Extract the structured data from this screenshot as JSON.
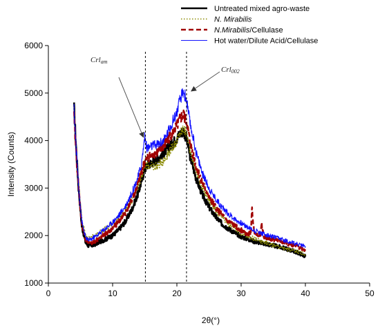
{
  "chart_data": {
    "type": "line",
    "title": "",
    "xlabel": "2θ(°)",
    "ylabel": "Intensity (Counts)",
    "xlim": [
      0,
      50
    ],
    "ylim": [
      1000,
      6000
    ],
    "x_ticks": [
      0,
      10,
      20,
      30,
      40,
      50
    ],
    "y_ticks": [
      1000,
      2000,
      3000,
      4000,
      5000,
      6000
    ],
    "grid": false,
    "legend_position": "top-right",
    "series": [
      {
        "name": "Untreated mixed agro-waste",
        "color": "#000000",
        "style": "solid-thick",
        "x": [
          4,
          4.3,
          4.7,
          5.2,
          5.8,
          6.3,
          7,
          8,
          9,
          10,
          11,
          12,
          13,
          14,
          14.5,
          15,
          15.5,
          16,
          17,
          18,
          19,
          20,
          20.5,
          21,
          21.5,
          22,
          23,
          24,
          25,
          26,
          27,
          28,
          29,
          30,
          31,
          32,
          33,
          34,
          35,
          36,
          37,
          38,
          39,
          40
        ],
        "y": [
          4700,
          3900,
          3000,
          2200,
          1850,
          1780,
          1800,
          1870,
          1930,
          2000,
          2130,
          2300,
          2550,
          2900,
          3150,
          3400,
          3500,
          3530,
          3620,
          3750,
          3900,
          4050,
          4150,
          4200,
          4050,
          3700,
          3200,
          2850,
          2600,
          2400,
          2250,
          2150,
          2060,
          1980,
          1930,
          1880,
          1850,
          1820,
          1790,
          1760,
          1720,
          1680,
          1630,
          1560
        ]
      },
      {
        "name": "N. Mirabilis",
        "color": "#8a8a00",
        "style": "dotted",
        "x": [
          4,
          4.3,
          4.7,
          5.2,
          5.8,
          6.3,
          7,
          8,
          9,
          10,
          11,
          12,
          13,
          14,
          14.5,
          15,
          15.5,
          16,
          17,
          18,
          19,
          20,
          20.5,
          21,
          21.5,
          22,
          23,
          24,
          25,
          26,
          27,
          28,
          29,
          30,
          31,
          32,
          33,
          34,
          35,
          36,
          37,
          38,
          39,
          40
        ],
        "y": [
          4600,
          3900,
          3100,
          2350,
          2000,
          1950,
          1980,
          2060,
          2150,
          2250,
          2370,
          2520,
          2750,
          3050,
          3250,
          3450,
          3480,
          3450,
          3470,
          3600,
          3800,
          4000,
          4150,
          4250,
          4150,
          3850,
          3350,
          3000,
          2750,
          2550,
          2380,
          2250,
          2150,
          2060,
          1990,
          1930,
          1880,
          1840,
          1800,
          1760,
          1720,
          1690,
          1650,
          1600
        ]
      },
      {
        "name": "N.Mirabilis/Cellulase",
        "color": "#a00000",
        "style": "dashed",
        "x": [
          4,
          4.3,
          4.7,
          5.2,
          5.8,
          6.3,
          7,
          8,
          9,
          10,
          11,
          12,
          13,
          14,
          14.5,
          15,
          15.5,
          16,
          17,
          18,
          19,
          20,
          20.5,
          21,
          21.5,
          22,
          23,
          24,
          25,
          26,
          27,
          28,
          29,
          30,
          31,
          31.5,
          31.7,
          32,
          33,
          33.2,
          33.5,
          34,
          35,
          36,
          37,
          38,
          39,
          40
        ],
        "y": [
          4500,
          3800,
          3000,
          2250,
          1900,
          1820,
          1860,
          1950,
          2050,
          2150,
          2300,
          2480,
          2750,
          3100,
          3350,
          3550,
          3650,
          3680,
          3760,
          3900,
          4100,
          4300,
          4450,
          4550,
          4400,
          4000,
          3450,
          3100,
          2820,
          2600,
          2430,
          2300,
          2200,
          2110,
          2040,
          2050,
          2550,
          2100,
          1990,
          2250,
          1990,
          1960,
          1920,
          1880,
          1840,
          1800,
          1760,
          1700
        ]
      },
      {
        "name": "Hot water/Dilute Acid/Cellulase",
        "color": "#1010ff",
        "style": "solid-thin",
        "x": [
          4,
          4.3,
          4.7,
          5.2,
          5.8,
          6.3,
          7,
          8,
          9,
          10,
          11,
          12,
          13,
          14,
          14.5,
          14.8,
          15,
          15.3,
          15.6,
          16,
          17,
          18,
          19,
          20,
          20.5,
          21,
          21.5,
          22,
          23,
          24,
          25,
          26,
          27,
          28,
          29,
          30,
          31,
          32,
          33,
          34,
          35,
          36,
          37,
          38,
          39,
          40
        ],
        "y": [
          4650,
          3900,
          3050,
          2300,
          1950,
          1900,
          1950,
          2050,
          2160,
          2280,
          2430,
          2620,
          2900,
          3250,
          3500,
          3850,
          4100,
          3850,
          3850,
          3880,
          3920,
          4000,
          4300,
          4600,
          4850,
          5050,
          4850,
          4400,
          3750,
          3300,
          3000,
          2780,
          2600,
          2460,
          2350,
          2260,
          2180,
          2110,
          2060,
          2010,
          1970,
          1930,
          1890,
          1850,
          1810,
          1770
        ]
      }
    ],
    "annotations": [
      {
        "text": "Crl",
        "sub": "am",
        "target_x": 15,
        "target_y": 4100
      },
      {
        "text": "Crl",
        "sub": "002",
        "target_x": 21.6,
        "target_y": 5100
      }
    ],
    "vertical_reference_lines": [
      15.1,
      21.5
    ]
  },
  "colors": {
    "axis": "#000000",
    "reference_line": "#000000"
  }
}
